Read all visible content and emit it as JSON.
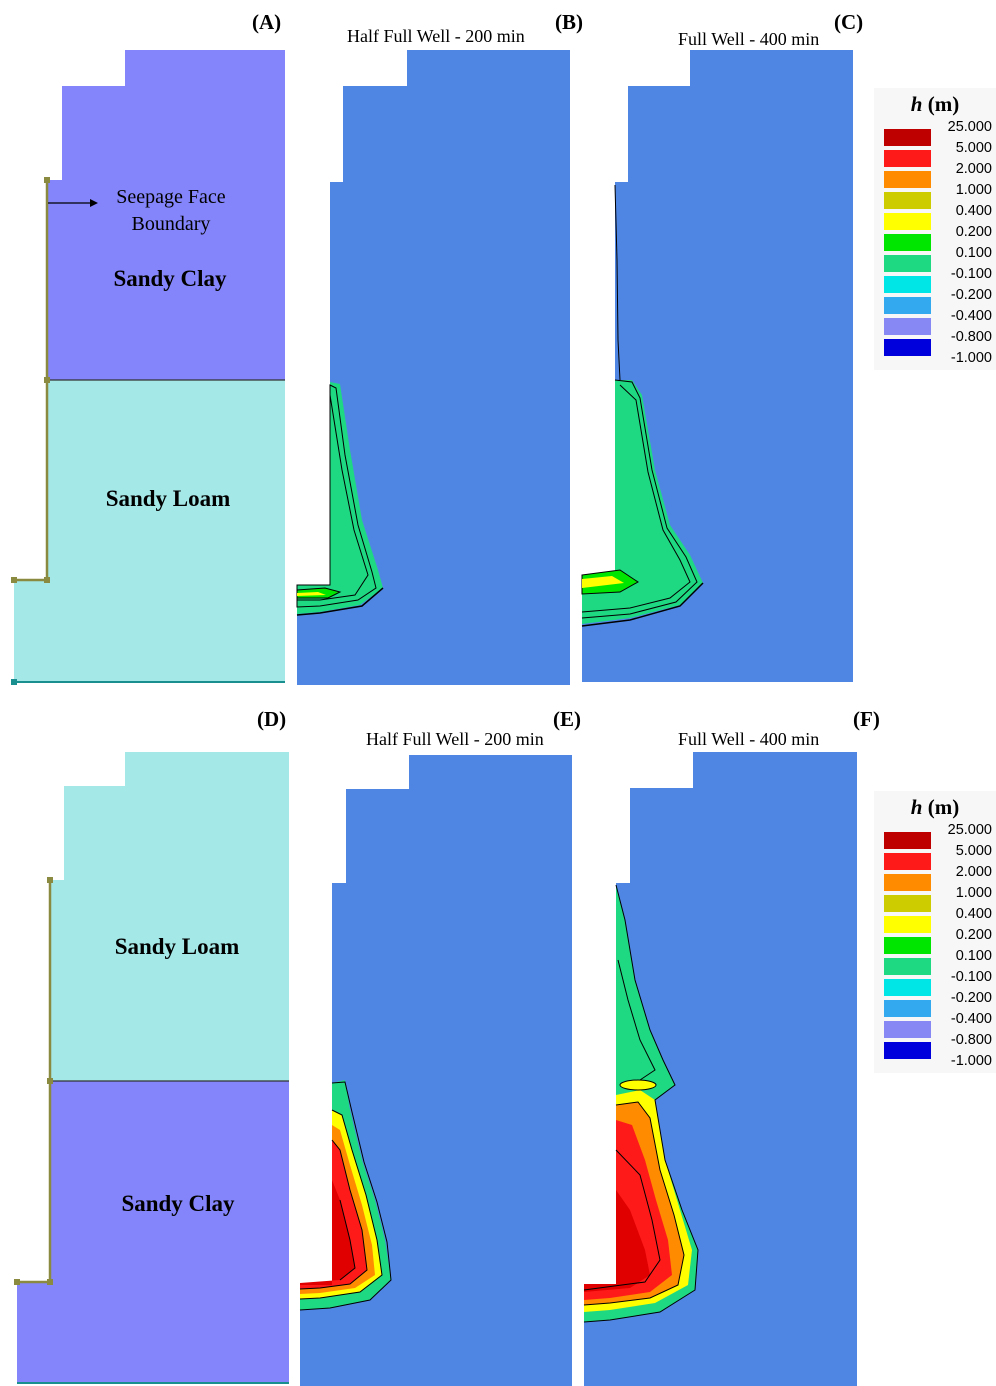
{
  "panels": {
    "a": {
      "label": "(A)"
    },
    "b": {
      "label": "(B)",
      "title": "Half Full Well - 200 min"
    },
    "c": {
      "label": "(C)",
      "title": "Full Well - 400 min"
    },
    "d": {
      "label": "(D)"
    },
    "e": {
      "label": "(E)",
      "title": "Half Full Well - 200 min"
    },
    "f": {
      "label": "(F)",
      "title": "Full Well - 400 min"
    }
  },
  "materials": {
    "a_top": "Sandy Clay",
    "a_bottom": "Sandy Loam",
    "d_top": "Sandy Loam",
    "d_bottom": "Sandy Clay"
  },
  "annotation": {
    "line1": "Seepage Face",
    "line2": "Boundary"
  },
  "legend": {
    "title_symbol": "h",
    "title_unit": " (m)",
    "entries": [
      {
        "value": "25.000",
        "color": "#bf0000"
      },
      {
        "value": "5.000",
        "color": "#ff1a1a"
      },
      {
        "value": "2.000",
        "color": "#ff8c00"
      },
      {
        "value": "1.000",
        "color": "#cccc00"
      },
      {
        "value": "0.400",
        "color": "#ffff00"
      },
      {
        "value": "0.200",
        "color": "#00e600"
      },
      {
        "value": "0.100",
        "color": "#1fd982"
      },
      {
        "value": "-0.100",
        "color": "#00e6e6"
      },
      {
        "value": "-0.200",
        "color": "#33aaf0"
      },
      {
        "value": "-0.400",
        "color": "#8888f5"
      },
      {
        "value": "-0.800",
        "color": "#0000dd"
      },
      {
        "value": "-1.000",
        "color": "#ffffff"
      }
    ]
  },
  "colors": {
    "sandy_clay": "#8585fb",
    "sandy_loam": "#a4e8e8",
    "soil_background": "#4f86e4",
    "boundary": "#8a8a40"
  }
}
